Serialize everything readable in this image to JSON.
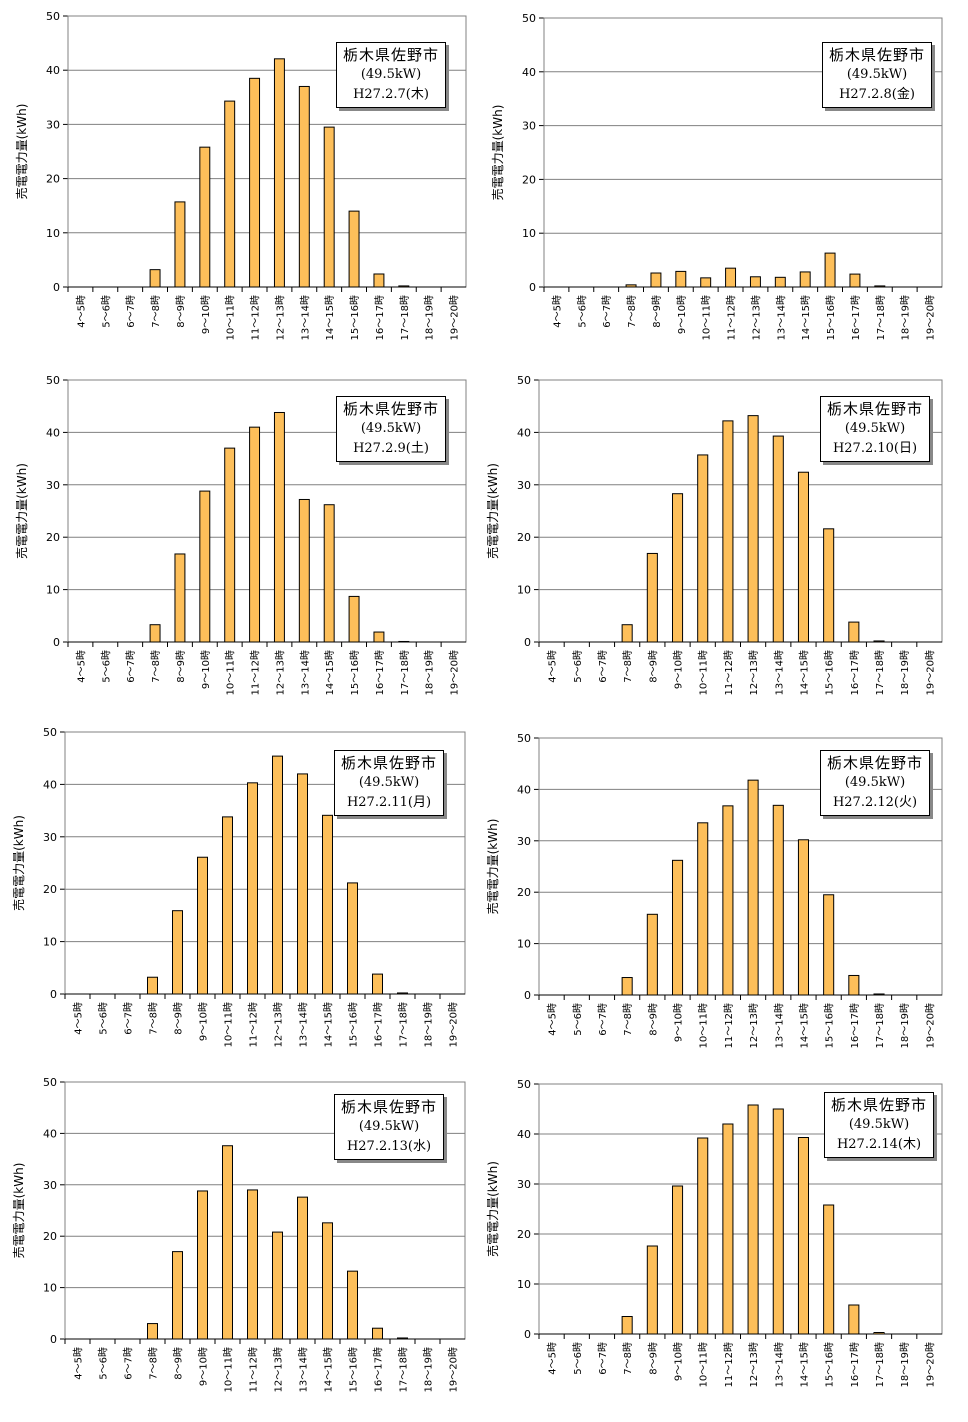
{
  "colors": {
    "bar_fill": "#fdbf5a",
    "bar_stroke": "#000000",
    "plot_border": "#808080",
    "grid": "#808080"
  },
  "chart_data": [
    {
      "type": "bar",
      "location": "栃木県佐野市",
      "capacity": "(49.5kW)",
      "date": "H27.2.7(木)",
      "ylabel": "売電電力量(kWh)",
      "ylim": [
        0,
        50
      ],
      "yticks": [
        0,
        10,
        20,
        30,
        40,
        50
      ],
      "grid": true,
      "categories": [
        "4～5時",
        "5～6時",
        "6～7時",
        "7～8時",
        "8～9時",
        "9～10時",
        "10～11時",
        "11～12時",
        "12～13時",
        "13～14時",
        "14～15時",
        "15～16時",
        "16～17時",
        "17～18時",
        "18～19時",
        "19～20時"
      ],
      "values": [
        0,
        0,
        0,
        3.2,
        15.7,
        25.8,
        34.3,
        38.5,
        42.1,
        37.0,
        29.5,
        14.0,
        2.4,
        0.2,
        0,
        0
      ]
    },
    {
      "type": "bar",
      "location": "栃木県佐野市",
      "capacity": "(49.5kW)",
      "date": "H27.2.8(金)",
      "ylabel": "売電電力量(kWh)",
      "ylim": [
        0,
        50
      ],
      "yticks": [
        0,
        10,
        20,
        30,
        40,
        50
      ],
      "grid": true,
      "categories": [
        "4～5時",
        "5～6時",
        "6～7時",
        "7～8時",
        "8～9時",
        "9～10時",
        "10～11時",
        "11～12時",
        "12～13時",
        "13～14時",
        "14～15時",
        "15～16時",
        "16～17時",
        "17～18時",
        "18～19時",
        "19～20時"
      ],
      "values": [
        0,
        0,
        0,
        0.4,
        2.6,
        2.9,
        1.7,
        3.5,
        1.9,
        1.8,
        2.8,
        6.3,
        2.4,
        0.2,
        0,
        0
      ]
    },
    {
      "type": "bar",
      "location": "栃木県佐野市",
      "capacity": "(49.5kW)",
      "date": "H27.2.9(土)",
      "ylabel": "売電電力量(kWh)",
      "ylim": [
        0,
        50
      ],
      "yticks": [
        0,
        10,
        20,
        30,
        40,
        50
      ],
      "grid": true,
      "categories": [
        "4～5時",
        "5～6時",
        "6～7時",
        "7～8時",
        "8～9時",
        "9～10時",
        "10～11時",
        "11～12時",
        "12～13時",
        "13～14時",
        "14～15時",
        "15～16時",
        "16～17時",
        "17～18時",
        "18～19時",
        "19～20時"
      ],
      "values": [
        0,
        0,
        0,
        3.3,
        16.8,
        28.8,
        37.0,
        41.0,
        43.8,
        27.2,
        26.2,
        8.7,
        1.9,
        0.1,
        0,
        0
      ]
    },
    {
      "type": "bar",
      "location": "栃木県佐野市",
      "capacity": "(49.5kW)",
      "date": "H27.2.10(日)",
      "ylabel": "売電電力量(kWh)",
      "ylim": [
        0,
        50
      ],
      "yticks": [
        0,
        10,
        20,
        30,
        40,
        50
      ],
      "grid": true,
      "categories": [
        "4～5時",
        "5～6時",
        "6～7時",
        "7～8時",
        "8～9時",
        "9～10時",
        "10～11時",
        "11～12時",
        "12～13時",
        "13～14時",
        "14～15時",
        "15～16時",
        "16～17時",
        "17～18時",
        "18～19時",
        "19～20時"
      ],
      "values": [
        0,
        0,
        0,
        3.3,
        16.9,
        28.3,
        35.7,
        42.2,
        43.2,
        39.3,
        32.4,
        21.6,
        3.8,
        0.2,
        0,
        0
      ]
    },
    {
      "type": "bar",
      "location": "栃木県佐野市",
      "capacity": "(49.5kW)",
      "date": "H27.2.11(月)",
      "ylabel": "売電電力量(kWh)",
      "ylim": [
        0,
        50
      ],
      "yticks": [
        0,
        10,
        20,
        30,
        40,
        50
      ],
      "grid": true,
      "categories": [
        "4～5時",
        "5～6時",
        "6～7時",
        "7～8時",
        "8～9時",
        "9～10時",
        "10～11時",
        "11～12時",
        "12～13時",
        "13～14時",
        "14～15時",
        "15～16時",
        "16～17時",
        "17～18時",
        "18～19時",
        "19～20時"
      ],
      "values": [
        0,
        0,
        0,
        3.2,
        15.9,
        26.1,
        33.8,
        40.3,
        45.4,
        42.0,
        34.1,
        21.2,
        3.8,
        0.2,
        0,
        0
      ]
    },
    {
      "type": "bar",
      "location": "栃木県佐野市",
      "capacity": "(49.5kW)",
      "date": "H27.2.12(火)",
      "ylabel": "売電電力量(kWh)",
      "ylim": [
        0,
        50
      ],
      "yticks": [
        0,
        10,
        20,
        30,
        40,
        50
      ],
      "grid": true,
      "categories": [
        "4～5時",
        "5～6時",
        "6～7時",
        "7～8時",
        "8～9時",
        "9～10時",
        "10～11時",
        "11～12時",
        "12～13時",
        "13～14時",
        "14～15時",
        "15～16時",
        "16～17時",
        "17～18時",
        "18～19時",
        "19～20時"
      ],
      "values": [
        0,
        0,
        0,
        3.4,
        15.7,
        26.2,
        33.5,
        36.8,
        41.8,
        36.9,
        30.2,
        19.5,
        3.8,
        0.2,
        0,
        0
      ]
    },
    {
      "type": "bar",
      "location": "栃木県佐野市",
      "capacity": "(49.5kW)",
      "date": "H27.2.13(水)",
      "ylabel": "売電電力量(kWh)",
      "ylim": [
        0,
        50
      ],
      "yticks": [
        0,
        10,
        20,
        30,
        40,
        50
      ],
      "grid": true,
      "categories": [
        "4～5時",
        "5～6時",
        "6～7時",
        "7～8時",
        "8～9時",
        "9～10時",
        "10～11時",
        "11～12時",
        "12～13時",
        "13～14時",
        "14～15時",
        "15～16時",
        "16～17時",
        "17～18時",
        "18～19時",
        "19～20時"
      ],
      "values": [
        0,
        0,
        0,
        3.0,
        17.0,
        28.8,
        37.6,
        29.0,
        20.8,
        27.6,
        22.6,
        13.2,
        2.1,
        0.2,
        0,
        0
      ]
    },
    {
      "type": "bar",
      "location": "栃木県佐野市",
      "capacity": "(49.5kW)",
      "date": "H27.2.14(木)",
      "ylabel": "売電電力量(kWh)",
      "ylim": [
        0,
        50
      ],
      "yticks": [
        0,
        10,
        20,
        30,
        40,
        50
      ],
      "grid": true,
      "categories": [
        "4～5時",
        "5～6時",
        "6～7時",
        "7～8時",
        "8～9時",
        "9～10時",
        "10～11時",
        "11～12時",
        "12～13時",
        "13～14時",
        "14～15時",
        "15～16時",
        "16～17時",
        "17～18時",
        "18～19時",
        "19～20時"
      ],
      "values": [
        0,
        0,
        0,
        3.5,
        17.6,
        29.6,
        39.2,
        42.0,
        45.8,
        45.0,
        39.3,
        25.8,
        5.8,
        0.3,
        0,
        0
      ]
    }
  ]
}
